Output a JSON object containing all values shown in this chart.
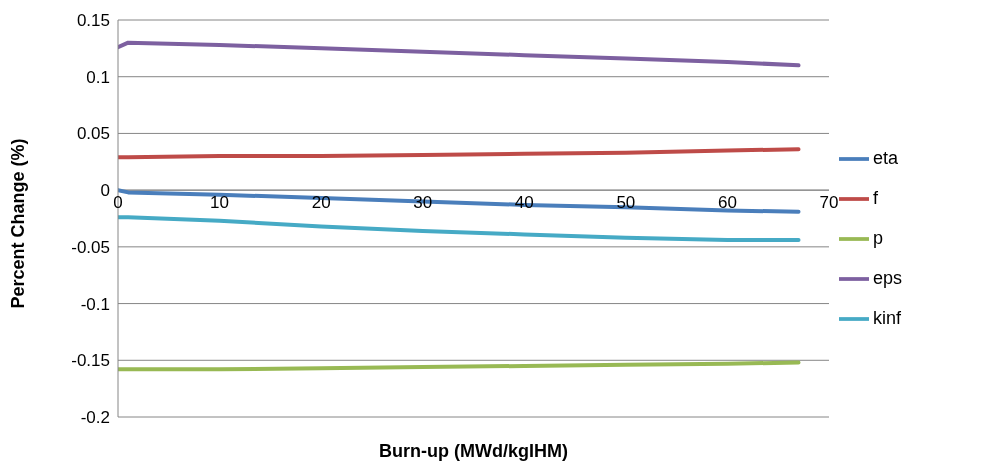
{
  "chart_data": {
    "type": "line",
    "xlabel": "Burn-up (MWd/kgIHM)",
    "ylabel": "Percent Change (%)",
    "xlim": [
      0,
      70
    ],
    "xticks": [
      0,
      10,
      20,
      30,
      40,
      50,
      60,
      70
    ],
    "ylim": [
      -0.2,
      0.15
    ],
    "yticks": [
      -0.2,
      -0.15,
      -0.1,
      -0.05,
      0,
      0.05,
      0.1,
      0.15
    ],
    "grid": "y",
    "legend": "right",
    "marker": "none",
    "line_style": "solid",
    "x": [
      0,
      1,
      10,
      20,
      30,
      40,
      50,
      60,
      67
    ],
    "series": [
      {
        "name": "eta",
        "color": "#4a7ebb",
        "values": [
          0.0,
          -0.002,
          -0.004,
          -0.007,
          -0.01,
          -0.013,
          -0.015,
          -0.018,
          -0.019
        ]
      },
      {
        "name": "f",
        "color": "#be4b48",
        "values": [
          0.029,
          0.029,
          0.03,
          0.03,
          0.031,
          0.032,
          0.033,
          0.035,
          0.036
        ]
      },
      {
        "name": "p",
        "color": "#98b954",
        "values": [
          -0.158,
          -0.158,
          -0.158,
          -0.157,
          -0.156,
          -0.155,
          -0.154,
          -0.153,
          -0.152
        ]
      },
      {
        "name": "eps",
        "color": "#7d60a0",
        "values": [
          0.126,
          0.13,
          0.128,
          0.125,
          0.122,
          0.119,
          0.116,
          0.113,
          0.11
        ]
      },
      {
        "name": "kinf",
        "color": "#46aac5",
        "values": [
          -0.024,
          -0.024,
          -0.027,
          -0.032,
          -0.036,
          -0.039,
          -0.042,
          -0.044,
          -0.044
        ]
      }
    ]
  }
}
